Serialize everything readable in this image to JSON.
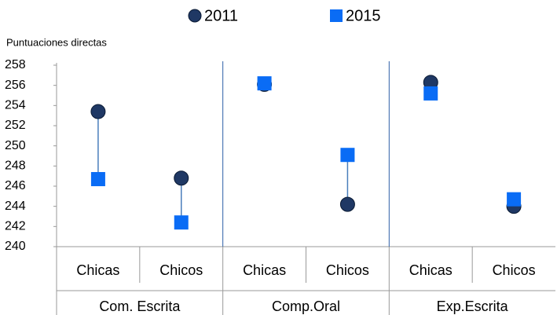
{
  "chart_data": {
    "type": "dot",
    "y_label": "Puntuaciones directas",
    "categories": [
      "Chicas",
      "Chicos",
      "Chicas",
      "Chicos",
      "Chicas",
      "Chicos"
    ],
    "groups": [
      "Com. Escrita",
      "Comp.Oral",
      "Exp.Escrita"
    ],
    "series": [
      {
        "name": "2011",
        "color": "#1f3864",
        "marker": "circle",
        "values": [
          253.4,
          246.8,
          256.1,
          244.2,
          256.3,
          244.0
        ]
      },
      {
        "name": "2015",
        "color": "#0a6cf5",
        "marker": "square",
        "values": [
          246.7,
          242.4,
          256.2,
          249.1,
          255.2,
          244.7
        ]
      }
    ],
    "ylim": [
      240,
      258
    ],
    "yticks": [
      240,
      242,
      244,
      246,
      248,
      250,
      252,
      254,
      256,
      258
    ],
    "connector_color": "#4a7ebb"
  }
}
